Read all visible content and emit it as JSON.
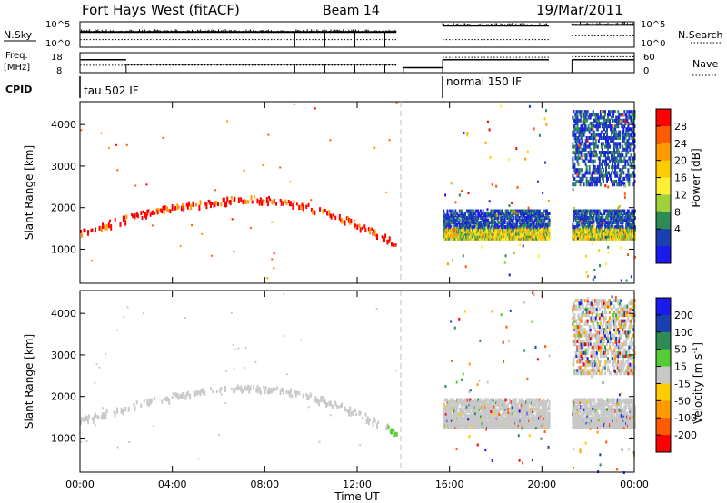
{
  "header": {
    "radar": "Fort Hays West (fitACF)",
    "beam": "Beam 14",
    "date": "19/Mar/2011"
  },
  "status_panels": {
    "nsky_label": "N.Sky",
    "nsearch_label": "N.Search",
    "nsky_ticks": [
      "10^5",
      "10^0"
    ],
    "nsearch_ticks": [
      "10^5",
      "10^0"
    ],
    "freq_label": "Freq.",
    "freq_unit": "[MHz]",
    "freq_ticks": [
      "18",
      "8"
    ],
    "nave_label": "Nave",
    "nave_ticks": [
      "60",
      "0"
    ],
    "cpid_label": "CPID",
    "cpid_segments": [
      {
        "label": "tau 502 IF",
        "start_h": 0.0,
        "end_h": 13.7
      },
      {
        "label": "normal 150 IF",
        "start_h": 15.7,
        "end_h": 24.0
      }
    ],
    "freq_steps": [
      {
        "start_h": 0.0,
        "end_h": 2.0,
        "mhz": 14.5
      },
      {
        "start_h": 2.0,
        "end_h": 13.7,
        "mhz": 12.2
      },
      {
        "start_h": 14.0,
        "end_h": 15.7,
        "mhz": 10.5
      },
      {
        "start_h": 15.7,
        "end_h": 20.3,
        "mhz": 14.5
      },
      {
        "start_h": 21.3,
        "end_h": 24.0,
        "mhz": 14.5
      }
    ],
    "nave_steps": [
      {
        "start_h": 0.0,
        "end_h": 13.7,
        "value": 22
      },
      {
        "start_h": 15.7,
        "end_h": 20.3,
        "value": 46
      },
      {
        "start_h": 21.3,
        "end_h": 24.0,
        "value": 48
      }
    ],
    "nsky_steps": [
      {
        "start_h": 0.0,
        "end_h": 13.7,
        "value": 0.6
      },
      {
        "start_h": 15.7,
        "end_h": 20.3,
        "value": 0.85
      },
      {
        "start_h": 21.3,
        "end_h": 24.0,
        "value": 0.88
      }
    ],
    "nsearch_steps": [
      {
        "start_h": 0.0,
        "end_h": 13.7,
        "value": 0.3
      },
      {
        "start_h": 15.7,
        "end_h": 20.3,
        "value": 0.3
      },
      {
        "start_h": 21.3,
        "end_h": 24.0,
        "value": 0.45
      }
    ]
  },
  "chart_data": [
    {
      "type": "heatmap",
      "panel": "power",
      "ylabel": "Slant Range [km]",
      "xlabel": "Time UT",
      "xlim_hours": [
        0,
        24
      ],
      "ylim_km": [
        180,
        4550
      ],
      "yticks": [
        1000,
        2000,
        3000,
        4000
      ],
      "xticks": [
        "00:00",
        "04:00",
        "08:00",
        "12:00",
        "16:00",
        "20:00",
        "00:00"
      ],
      "colorbar": {
        "label": "Power [dB]",
        "ticks": [
          "28",
          "24",
          "20",
          "16",
          "12",
          "8",
          "4"
        ],
        "colors": [
          "#ff0000",
          "#ff5a00",
          "#ff9900",
          "#ffcc00",
          "#ffee33",
          "#9fd23a",
          "#2e8b57",
          "#1c3fb0",
          "#1a1aee"
        ]
      },
      "features": [
        {
          "start_h": 0.0,
          "end_h": 13.7,
          "range_start_km": 1450,
          "range_mid_km": 2230,
          "range_end_km": 1150,
          "peak_h": 7.5,
          "level": "high"
        },
        {
          "start_h": 15.7,
          "end_h": 20.3,
          "band_km": [
            1300,
            2000
          ],
          "level": "mixed"
        },
        {
          "start_h": 21.3,
          "end_h": 24.0,
          "band_km": [
            1300,
            2000
          ],
          "upper_band_km": [
            2600,
            4400
          ],
          "level": "mixed"
        }
      ]
    },
    {
      "type": "heatmap",
      "panel": "velocity",
      "ylabel": "Slant Range [km]",
      "xlabel": "Time UT",
      "xlim_hours": [
        0,
        24
      ],
      "ylim_km": [
        180,
        4550
      ],
      "yticks": [
        1000,
        2000,
        3000,
        4000
      ],
      "xticks": [
        "00:00",
        "04:00",
        "08:00",
        "12:00",
        "16:00",
        "20:00",
        "00:00"
      ],
      "colorbar": {
        "label": "Velocity [m s",
        "label_exp": "-1",
        "label_end": "]",
        "ticks": [
          "200",
          "100",
          "50",
          "15",
          "-15",
          "-50",
          "-100",
          "-200"
        ],
        "colors": [
          "#1a1aee",
          "#1c3fb0",
          "#2e8b57",
          "#55cc33",
          "#c8c8c8",
          "#ffcc00",
          "#ff9900",
          "#ff5a00",
          "#ff0000"
        ]
      },
      "features": [
        {
          "start_h": 0.0,
          "end_h": 13.7,
          "range_start_km": 1450,
          "range_mid_km": 2230,
          "range_end_km": 1150,
          "peak_h": 7.5,
          "level": "ground-scatter"
        },
        {
          "start_h": 15.7,
          "end_h": 20.3,
          "band_km": [
            1300,
            2000
          ],
          "level": "ground-scatter"
        },
        {
          "start_h": 21.3,
          "end_h": 24.0,
          "band_km": [
            1300,
            2000
          ],
          "upper_band_km": [
            2600,
            4400
          ],
          "level": "mixed"
        }
      ]
    }
  ]
}
